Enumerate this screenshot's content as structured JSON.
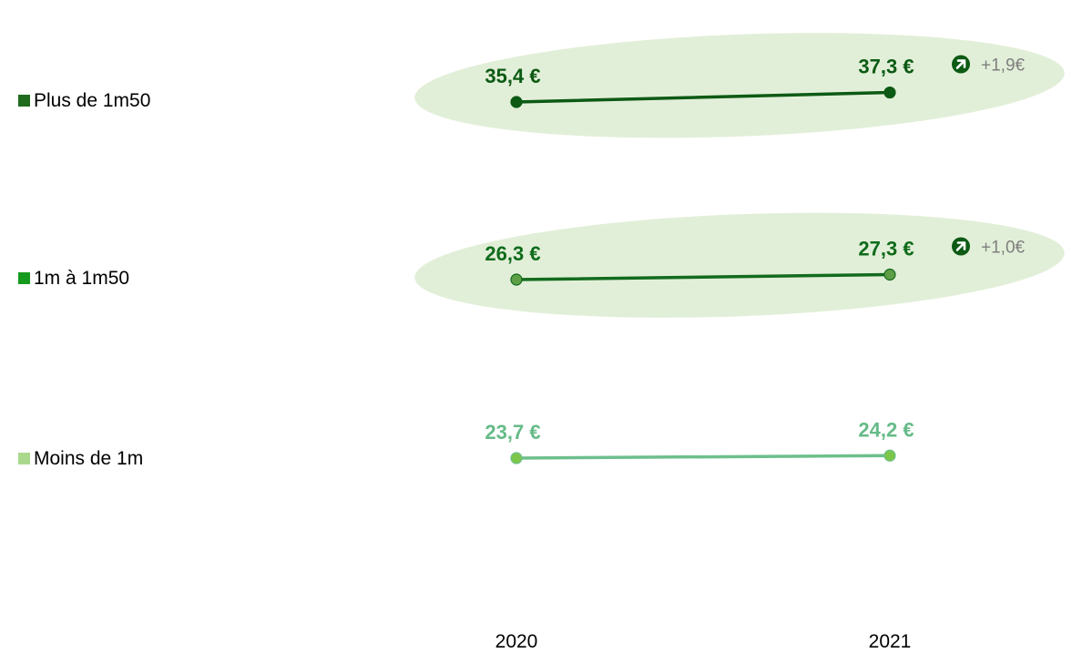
{
  "chart_data": {
    "type": "line",
    "title": "",
    "x": [
      "2020",
      "2021"
    ],
    "unit": "€",
    "series": [
      {
        "name": "Plus de 1m50",
        "values": [
          35.4,
          37.3
        ],
        "labels": [
          "35,4 €",
          "37,3 €"
        ],
        "change": "+1,9€",
        "trend_icon": "arrow-up-right-icon",
        "highlighted": true,
        "color": "#0c5a14",
        "marker_color": "#0c5a14",
        "legend_color": "#1e6b1e",
        "label_color": "#0c5a14"
      },
      {
        "name": "1m à 1m50",
        "values": [
          26.3,
          27.3
        ],
        "labels": [
          "26,3 €",
          "27,3 €"
        ],
        "change": "+1,0€",
        "trend_icon": "arrow-up-right-icon",
        "highlighted": true,
        "color": "#126b1e",
        "marker_color": "#5e9e44",
        "legend_color": "#169a1e",
        "label_color": "#0e6b1a"
      },
      {
        "name": "Moins de 1m",
        "values": [
          23.7,
          24.2
        ],
        "labels": [
          "23,7 €",
          "24,2 €"
        ],
        "change": "",
        "trend_icon": "",
        "highlighted": false,
        "color": "#6dbf8c",
        "marker_color": "#7cc64a",
        "legend_color": "#a9d88c",
        "label_color": "#66bb88"
      }
    ],
    "highlight_color": "#e2efd8",
    "icon_color": "#0c5a14",
    "legend_position": "left",
    "grid": false
  }
}
